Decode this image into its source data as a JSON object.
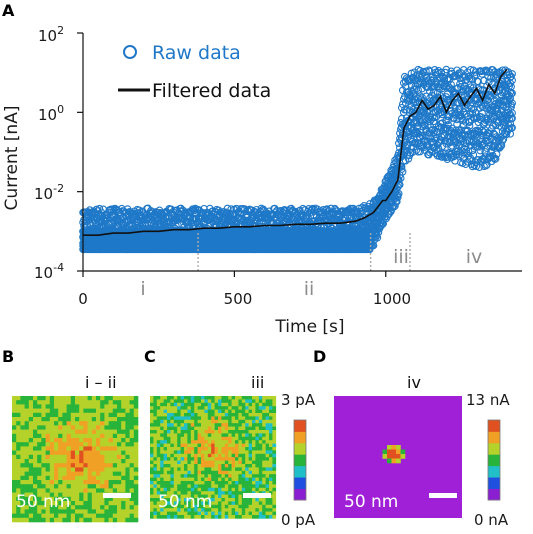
{
  "panels": {
    "A": "A",
    "B": "B",
    "C": "C",
    "D": "D"
  },
  "chart_data": {
    "type": "scatter",
    "xlabel": "Time [s]",
    "ylabel": "Current [nA]",
    "xlim": [
      0,
      1450
    ],
    "ylim": [
      0.0001,
      100
    ],
    "yscale": "log",
    "x_ticks": [
      "0",
      "500",
      "1000"
    ],
    "y_ticks": [
      {
        "base": "10",
        "exp": "2"
      },
      {
        "base": "10",
        "exp": "0"
      },
      {
        "base": "10",
        "exp": "-2"
      },
      {
        "base": "10",
        "exp": "-4"
      }
    ],
    "legend": {
      "placement": "top-left",
      "entries": [
        "Raw data",
        "Filtered data"
      ]
    },
    "colors": {
      "raw": "#1f78c8",
      "filtered": "#111111",
      "phase_line": "#aaaaaa"
    },
    "phases": [
      {
        "label": "i",
        "x_start": 0,
        "x_end": 380
      },
      {
        "label": "ii",
        "x_start": 380,
        "x_end": 950
      },
      {
        "label": "iii",
        "x_start": 950,
        "x_end": 1080
      },
      {
        "label": "iv",
        "x_start": 1080,
        "x_end": 1450
      }
    ],
    "boundaries_x": [
      380,
      950,
      1080
    ],
    "series": [
      {
        "name": "Filtered data",
        "x": [
          0,
          50,
          100,
          150,
          200,
          250,
          300,
          350,
          400,
          450,
          500,
          550,
          600,
          650,
          700,
          750,
          800,
          850,
          900,
          930,
          960,
          990,
          1000,
          1020,
          1040,
          1060,
          1080,
          1100,
          1120,
          1140,
          1160,
          1180,
          1200,
          1220,
          1240,
          1260,
          1280,
          1300,
          1320,
          1340,
          1360,
          1380,
          1400
        ],
        "values": [
          0.0008,
          0.0008,
          0.0009,
          0.0009,
          0.001,
          0.001,
          0.0011,
          0.0011,
          0.0012,
          0.0012,
          0.0013,
          0.0013,
          0.0014,
          0.0014,
          0.0015,
          0.0015,
          0.0016,
          0.0016,
          0.0018,
          0.0022,
          0.003,
          0.006,
          0.006,
          0.01,
          0.02,
          0.4,
          0.8,
          1.0,
          2.0,
          1.2,
          1.5,
          2.5,
          1.0,
          2.0,
          3.0,
          1.5,
          2.5,
          4.0,
          2.0,
          5.0,
          3.0,
          8.0,
          12
        ]
      },
      {
        "name": "Raw data",
        "x_range": [
          0,
          1420
        ],
        "envelope": {
          "x": [
            0,
            900,
            960,
            1000,
            1040,
            1060,
            1100,
            1150,
            1200,
            1250,
            1300,
            1350,
            1400,
            1420
          ],
          "low": [
            0.00035,
            0.00035,
            0.0004,
            0.002,
            0.005,
            0.05,
            0.1,
            0.08,
            0.06,
            0.05,
            0.04,
            0.04,
            0.25,
            0.3
          ],
          "high": [
            0.004,
            0.004,
            0.006,
            0.02,
            0.1,
            10,
            13,
            13,
            13,
            13,
            13,
            13,
            13,
            13
          ]
        }
      }
    ]
  },
  "maps": {
    "B": {
      "label": "i – ii",
      "scale_text": "50 nm"
    },
    "C": {
      "label": "iii",
      "scale_text": "50 nm"
    },
    "D": {
      "label": "iv",
      "scale_text": "50 nm"
    }
  },
  "colorbars": {
    "left": {
      "max": "3 pA",
      "min": "0 pA"
    },
    "right": {
      "max": "13 nA",
      "min": "0 nA"
    },
    "colors": [
      "#8a1fd1",
      "#2050e0",
      "#21c0c8",
      "#28b33a",
      "#b4d22a",
      "#f0a024",
      "#e05020"
    ]
  }
}
